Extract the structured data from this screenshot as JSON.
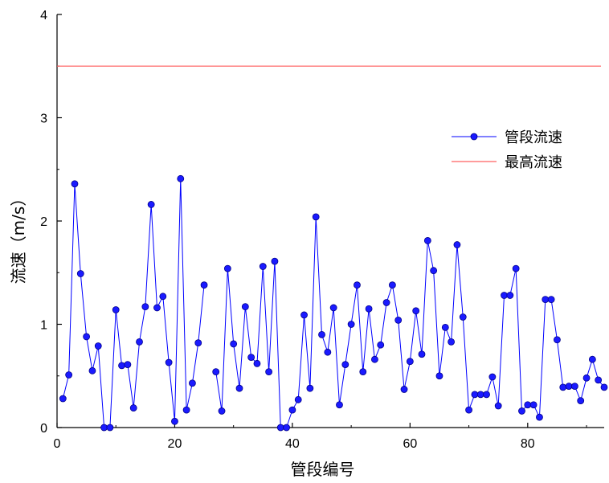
{
  "chart_data": {
    "type": "line",
    "title": "",
    "xlabel": "管段编号",
    "ylabel": "流速（m/s）",
    "xlim": [
      0,
      93
    ],
    "ylim": [
      0,
      4
    ],
    "x_ticks": [
      0,
      20,
      40,
      60,
      80
    ],
    "y_ticks": [
      0,
      1,
      2,
      3,
      4
    ],
    "grid": false,
    "legend_position": "right",
    "series": [
      {
        "name": "管段流速",
        "color": "#0000ff",
        "marker": "circle",
        "values": [
          0.28,
          0.51,
          2.36,
          1.49,
          0.88,
          0.55,
          0.79,
          0.0,
          0.0,
          1.14,
          0.6,
          0.61,
          0.19,
          0.83,
          1.17,
          2.16,
          1.16,
          1.27,
          0.63,
          0.06,
          2.41,
          0.17,
          0.43,
          0.82,
          1.38,
          null,
          0.54,
          0.16,
          1.54,
          0.81,
          0.38,
          1.17,
          0.68,
          0.62,
          1.56,
          0.54,
          1.61,
          0.0,
          0.0,
          0.17,
          0.27,
          1.09,
          0.38,
          2.04,
          0.9,
          0.73,
          1.16,
          0.22,
          0.61,
          1.0,
          1.38,
          0.54,
          1.15,
          0.66,
          0.8,
          1.21,
          1.38,
          1.04,
          0.37,
          0.64,
          1.13,
          0.71,
          1.81,
          1.52,
          0.5,
          0.97,
          0.83,
          1.77,
          1.07,
          0.17,
          0.32,
          0.32,
          0.32,
          0.49,
          0.21,
          1.28,
          1.28,
          1.54,
          0.16,
          0.22,
          0.22,
          0.1,
          1.24,
          1.24,
          0.85,
          0.39,
          0.4,
          0.4,
          0.26,
          0.48,
          0.66,
          0.46,
          0.39
        ]
      },
      {
        "name": "最高流速",
        "color": "#ff6060",
        "marker": "none",
        "values": [
          3.5,
          3.5
        ]
      }
    ]
  }
}
